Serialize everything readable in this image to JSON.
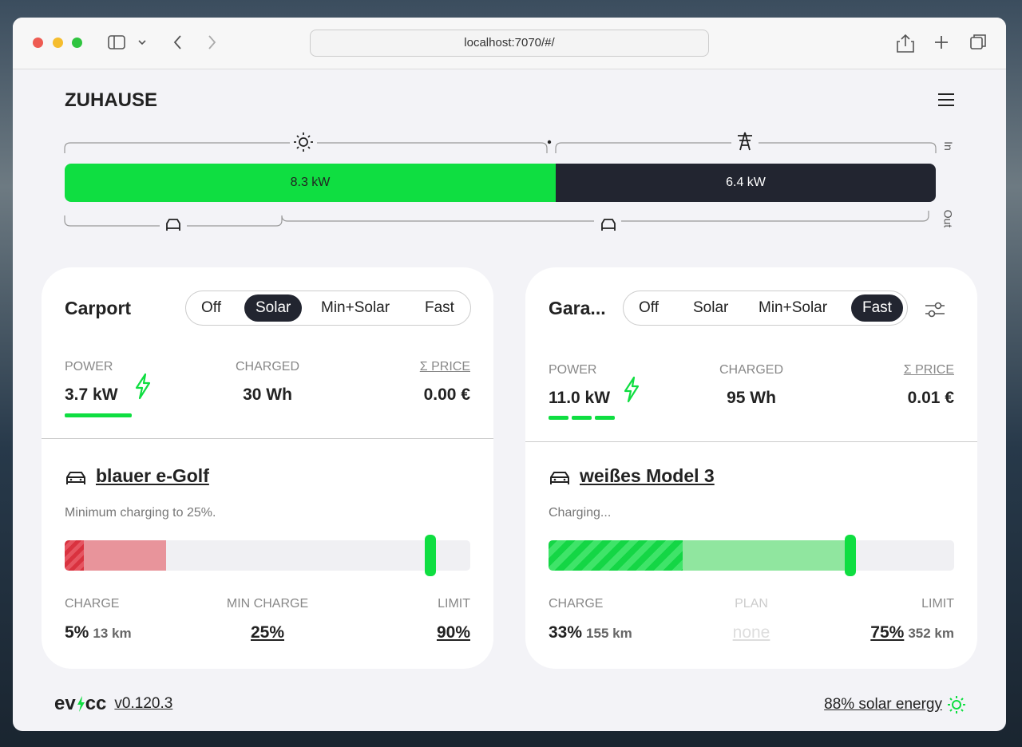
{
  "browser": {
    "url": "localhost:7070/#/"
  },
  "header": {
    "title": "ZUHAUSE"
  },
  "energyflow": {
    "pv": "8.3 kW",
    "grid": "6.4 kW",
    "in_label": "In",
    "out_label": "Out"
  },
  "loadpoints": [
    {
      "title": "Carport",
      "modes": [
        "Off",
        "Solar",
        "Min+Solar",
        "Fast"
      ],
      "active_mode": "Solar",
      "settings_icon": false,
      "stats": [
        {
          "label": "POWER",
          "value": "3.7 kW"
        },
        {
          "label": "CHARGED",
          "value": "30 Wh"
        },
        {
          "label": "Σ PRICE",
          "value": "0.00 €"
        }
      ],
      "vehicle": {
        "name": "blauer e-Golf",
        "status": "Minimum charging to 25%."
      },
      "details": [
        {
          "label": "CHARGE",
          "value": "5%",
          "sub": "13 km"
        },
        {
          "label": "MIN CHARGE",
          "value": "25%"
        },
        {
          "label": "LIMIT",
          "value": "90%"
        }
      ]
    },
    {
      "title": "Gara...",
      "modes": [
        "Off",
        "Solar",
        "Min+Solar",
        "Fast"
      ],
      "active_mode": "Fast",
      "settings_icon": true,
      "stats": [
        {
          "label": "POWER",
          "value": "11.0 kW"
        },
        {
          "label": "CHARGED",
          "value": "95 Wh"
        },
        {
          "label": "Σ PRICE",
          "value": "0.01 €"
        }
      ],
      "vehicle": {
        "name": "weißes Model 3",
        "status": "Charging..."
      },
      "details": [
        {
          "label": "CHARGE",
          "value": "33%",
          "sub": "155 km"
        },
        {
          "label": "PLAN",
          "value": "none"
        },
        {
          "label": "LIMIT",
          "value": "75%",
          "sub": "352 km"
        }
      ]
    }
  ],
  "footer": {
    "logo": [
      "ev",
      "cc"
    ],
    "version": "v0.120.3",
    "solar": "88% solar energy"
  }
}
